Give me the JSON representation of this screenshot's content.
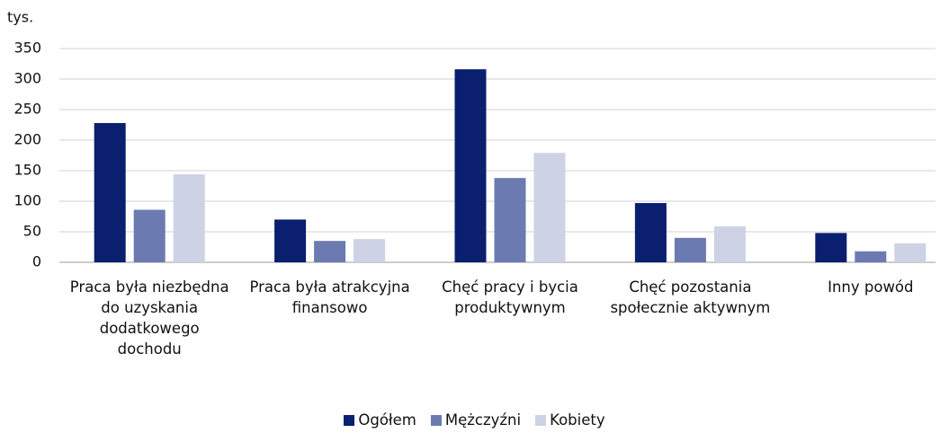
{
  "chart_data": {
    "type": "bar",
    "y_label": "tys.",
    "categories": [
      "Praca była niezbędna do uzyskania dodatkowego dochodu",
      "Praca była atrakcyjna finansowo",
      "Chęć pracy i bycia produktywnym",
      "Chęć pozostania społecznie aktywnym",
      "Inny powód"
    ],
    "series": [
      {
        "name": "Ogółem",
        "color": "#0b1f6f",
        "values": [
          228,
          70,
          316,
          97,
          48
        ]
      },
      {
        "name": "Mężczyźni",
        "color": "#6b7bb1",
        "values": [
          86,
          35,
          138,
          40,
          18
        ]
      },
      {
        "name": "Kobiety",
        "color": "#cdd2e5",
        "values": [
          144,
          38,
          179,
          59,
          31
        ]
      }
    ],
    "ylim": [
      0,
      350
    ],
    "yticks": [
      0,
      50,
      100,
      150,
      200,
      250,
      300,
      350
    ],
    "grid": true,
    "legend": "bottom"
  }
}
